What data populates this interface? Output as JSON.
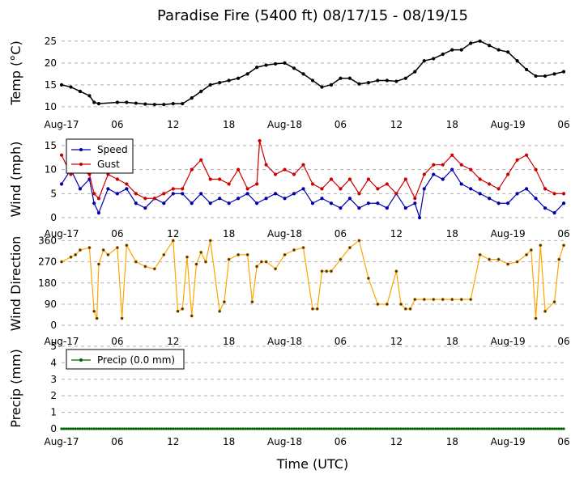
{
  "title": "Paradise Fire (5400 ft) 08/17/15 - 08/19/15",
  "xlabel": "Time (UTC)",
  "colors": {
    "temp": "#000000",
    "speed": "#0000aa",
    "gust": "#cc0000",
    "direction": "#ffa500",
    "precip": "#006400",
    "grid": "#b0b0b0"
  },
  "chart_data": [
    {
      "type": "line",
      "ylabel": "Temp (°C)",
      "ylim": [
        8.5,
        27
      ],
      "yticks": [
        10,
        15,
        20,
        25
      ],
      "xticks": [
        "Aug-17",
        "06",
        "12",
        "18",
        "Aug-18",
        "06",
        "12",
        "18",
        "Aug-19",
        "06"
      ],
      "x_range_hours": [
        0,
        54
      ],
      "grid": "horizontal dashed",
      "series": [
        {
          "key": "temp",
          "style": "line-markers",
          "x_hours": [
            0,
            1,
            2,
            3,
            3.5,
            4,
            6,
            7,
            8,
            9,
            10,
            11,
            12,
            13,
            14,
            15,
            16,
            17,
            18,
            19,
            20,
            21,
            22,
            23,
            24,
            25,
            26,
            27,
            28,
            29,
            30,
            31,
            32,
            33,
            34,
            35,
            36,
            37,
            38,
            39,
            40,
            41,
            42,
            43,
            44,
            45,
            46,
            47,
            48,
            49,
            50,
            51,
            52,
            53,
            54
          ],
          "values": [
            15,
            14.5,
            13.5,
            12.5,
            11,
            10.7,
            11,
            11,
            10.8,
            10.6,
            10.5,
            10.5,
            10.7,
            10.7,
            12,
            13.5,
            15,
            15.5,
            16,
            16.5,
            17.5,
            19,
            19.5,
            19.8,
            20,
            18.8,
            17.5,
            16,
            14.5,
            15,
            16.5,
            16.5,
            15.2,
            15.5,
            16,
            16,
            15.8,
            16.5,
            18,
            20.5,
            21,
            22,
            23,
            23,
            24.5,
            25,
            24,
            23,
            22.5,
            20.5,
            18.5,
            17,
            17,
            17.5,
            18
          ]
        }
      ]
    },
    {
      "type": "line",
      "ylabel": "Wind (mph)",
      "ylim": [
        -1,
        17
      ],
      "yticks": [
        0,
        5,
        10,
        15
      ],
      "xticks": [
        "Aug-17",
        "06",
        "12",
        "18",
        "Aug-18",
        "06",
        "12",
        "18",
        "Aug-19",
        "06"
      ],
      "x_range_hours": [
        0,
        54
      ],
      "legend": "top-left",
      "grid": "horizontal dashed",
      "series": [
        {
          "name": "Speed",
          "key": "speed",
          "style": "line-markers",
          "x_hours": [
            0,
            1,
            2,
            3,
            3.5,
            4,
            5,
            6,
            7,
            8,
            9,
            10,
            11,
            12,
            13,
            14,
            15,
            16,
            17,
            18,
            19,
            20,
            21,
            22,
            23,
            24,
            25,
            26,
            27,
            28,
            29,
            30,
            31,
            32,
            33,
            34,
            35,
            36,
            37,
            38,
            38.5,
            39,
            40,
            41,
            42,
            43,
            44,
            45,
            46,
            47,
            48,
            49,
            50,
            51,
            52,
            53,
            54
          ],
          "values": [
            7,
            10,
            6,
            8,
            3,
            1,
            6,
            5,
            6,
            3,
            2,
            4,
            3,
            5,
            5,
            3,
            5,
            3,
            4,
            3,
            4,
            5,
            3,
            4,
            5,
            4,
            5,
            6,
            3,
            4,
            3,
            2,
            4,
            2,
            3,
            3,
            2,
            5,
            2,
            3,
            0,
            6,
            9,
            8,
            10,
            7,
            6,
            5,
            4,
            3,
            3,
            5,
            6,
            4,
            2,
            1,
            3
          ]
        },
        {
          "name": "Gust",
          "key": "gust",
          "style": "line-markers",
          "x_hours": [
            0,
            1,
            2,
            3,
            3.5,
            4,
            5,
            6,
            7,
            8,
            9,
            10,
            11,
            12,
            13,
            14,
            15,
            16,
            17,
            18,
            19,
            20,
            21,
            21.3,
            22,
            23,
            24,
            25,
            26,
            27,
            28,
            29,
            30,
            31,
            32,
            33,
            34,
            35,
            36,
            37,
            38,
            39,
            40,
            41,
            42,
            43,
            44,
            45,
            46,
            47,
            48,
            49,
            50,
            51,
            52,
            53,
            54
          ],
          "values": [
            13,
            9,
            10,
            9,
            5,
            4,
            9,
            8,
            7,
            5,
            4,
            4,
            5,
            6,
            6,
            10,
            12,
            8,
            8,
            7,
            10,
            6,
            7,
            16,
            11,
            9,
            10,
            9,
            11,
            7,
            6,
            8,
            6,
            8,
            5,
            8,
            6,
            7,
            5,
            8,
            4,
            9,
            11,
            11,
            13,
            11,
            10,
            8,
            7,
            6,
            9,
            12,
            13,
            10,
            6,
            5,
            5
          ]
        }
      ]
    },
    {
      "type": "line",
      "ylabel": "Wind Direction",
      "ylim": [
        -20,
        375
      ],
      "yticks": [
        0,
        90,
        180,
        270,
        360
      ],
      "xticks": [
        "Aug-17",
        "06",
        "12",
        "18",
        "Aug-18",
        "06",
        "12",
        "18",
        "Aug-19",
        "06"
      ],
      "x_range_hours": [
        0,
        54
      ],
      "grid": "horizontal dashed",
      "series": [
        {
          "key": "direction",
          "style": "line-markers",
          "x_hours": [
            0,
            1,
            1.5,
            2,
            3,
            3.5,
            3.8,
            4,
            4.5,
            5,
            6,
            6.5,
            7,
            8,
            9,
            10,
            11,
            12,
            12.5,
            13,
            13.5,
            14,
            14.5,
            15,
            15.5,
            16,
            17,
            17.5,
            18,
            19,
            20,
            20.5,
            21,
            21.5,
            22,
            23,
            24,
            25,
            26,
            27,
            27.5,
            28,
            28.5,
            29,
            30,
            31,
            32,
            33,
            34,
            35,
            36,
            36.5,
            37,
            37.5,
            38,
            39,
            40,
            41,
            42,
            43,
            44,
            45,
            46,
            47,
            48,
            49,
            50,
            50.5,
            51,
            51.5,
            52,
            53,
            53.5,
            54
          ],
          "values": [
            270,
            290,
            300,
            320,
            330,
            60,
            30,
            260,
            320,
            300,
            330,
            30,
            340,
            270,
            250,
            240,
            300,
            360,
            60,
            70,
            290,
            40,
            260,
            310,
            270,
            360,
            60,
            100,
            280,
            300,
            300,
            100,
            250,
            270,
            270,
            240,
            300,
            320,
            330,
            70,
            70,
            230,
            230,
            230,
            280,
            330,
            360,
            200,
            90,
            90,
            230,
            90,
            70,
            70,
            110,
            110,
            110,
            110,
            110,
            110,
            110,
            300,
            280,
            280,
            260,
            270,
            300,
            320,
            30,
            340,
            60,
            100,
            280,
            340
          ]
        }
      ]
    },
    {
      "type": "line",
      "ylabel": "Precip (mm)",
      "ylim": [
        -0.1,
        5
      ],
      "yticks": [
        0,
        1,
        2,
        3,
        4,
        5
      ],
      "xticks": [
        "Aug-17",
        "06",
        "12",
        "18",
        "Aug-18",
        "06",
        "12",
        "18",
        "Aug-19",
        "06"
      ],
      "x_range_hours": [
        0,
        54
      ],
      "legend": "top-left",
      "grid": "horizontal dashed",
      "series": [
        {
          "name": "Precip (0.0 mm)",
          "key": "precip",
          "style": "line-markers",
          "x_hours": [
            0,
            54
          ],
          "values": [
            0,
            0
          ]
        }
      ]
    }
  ]
}
